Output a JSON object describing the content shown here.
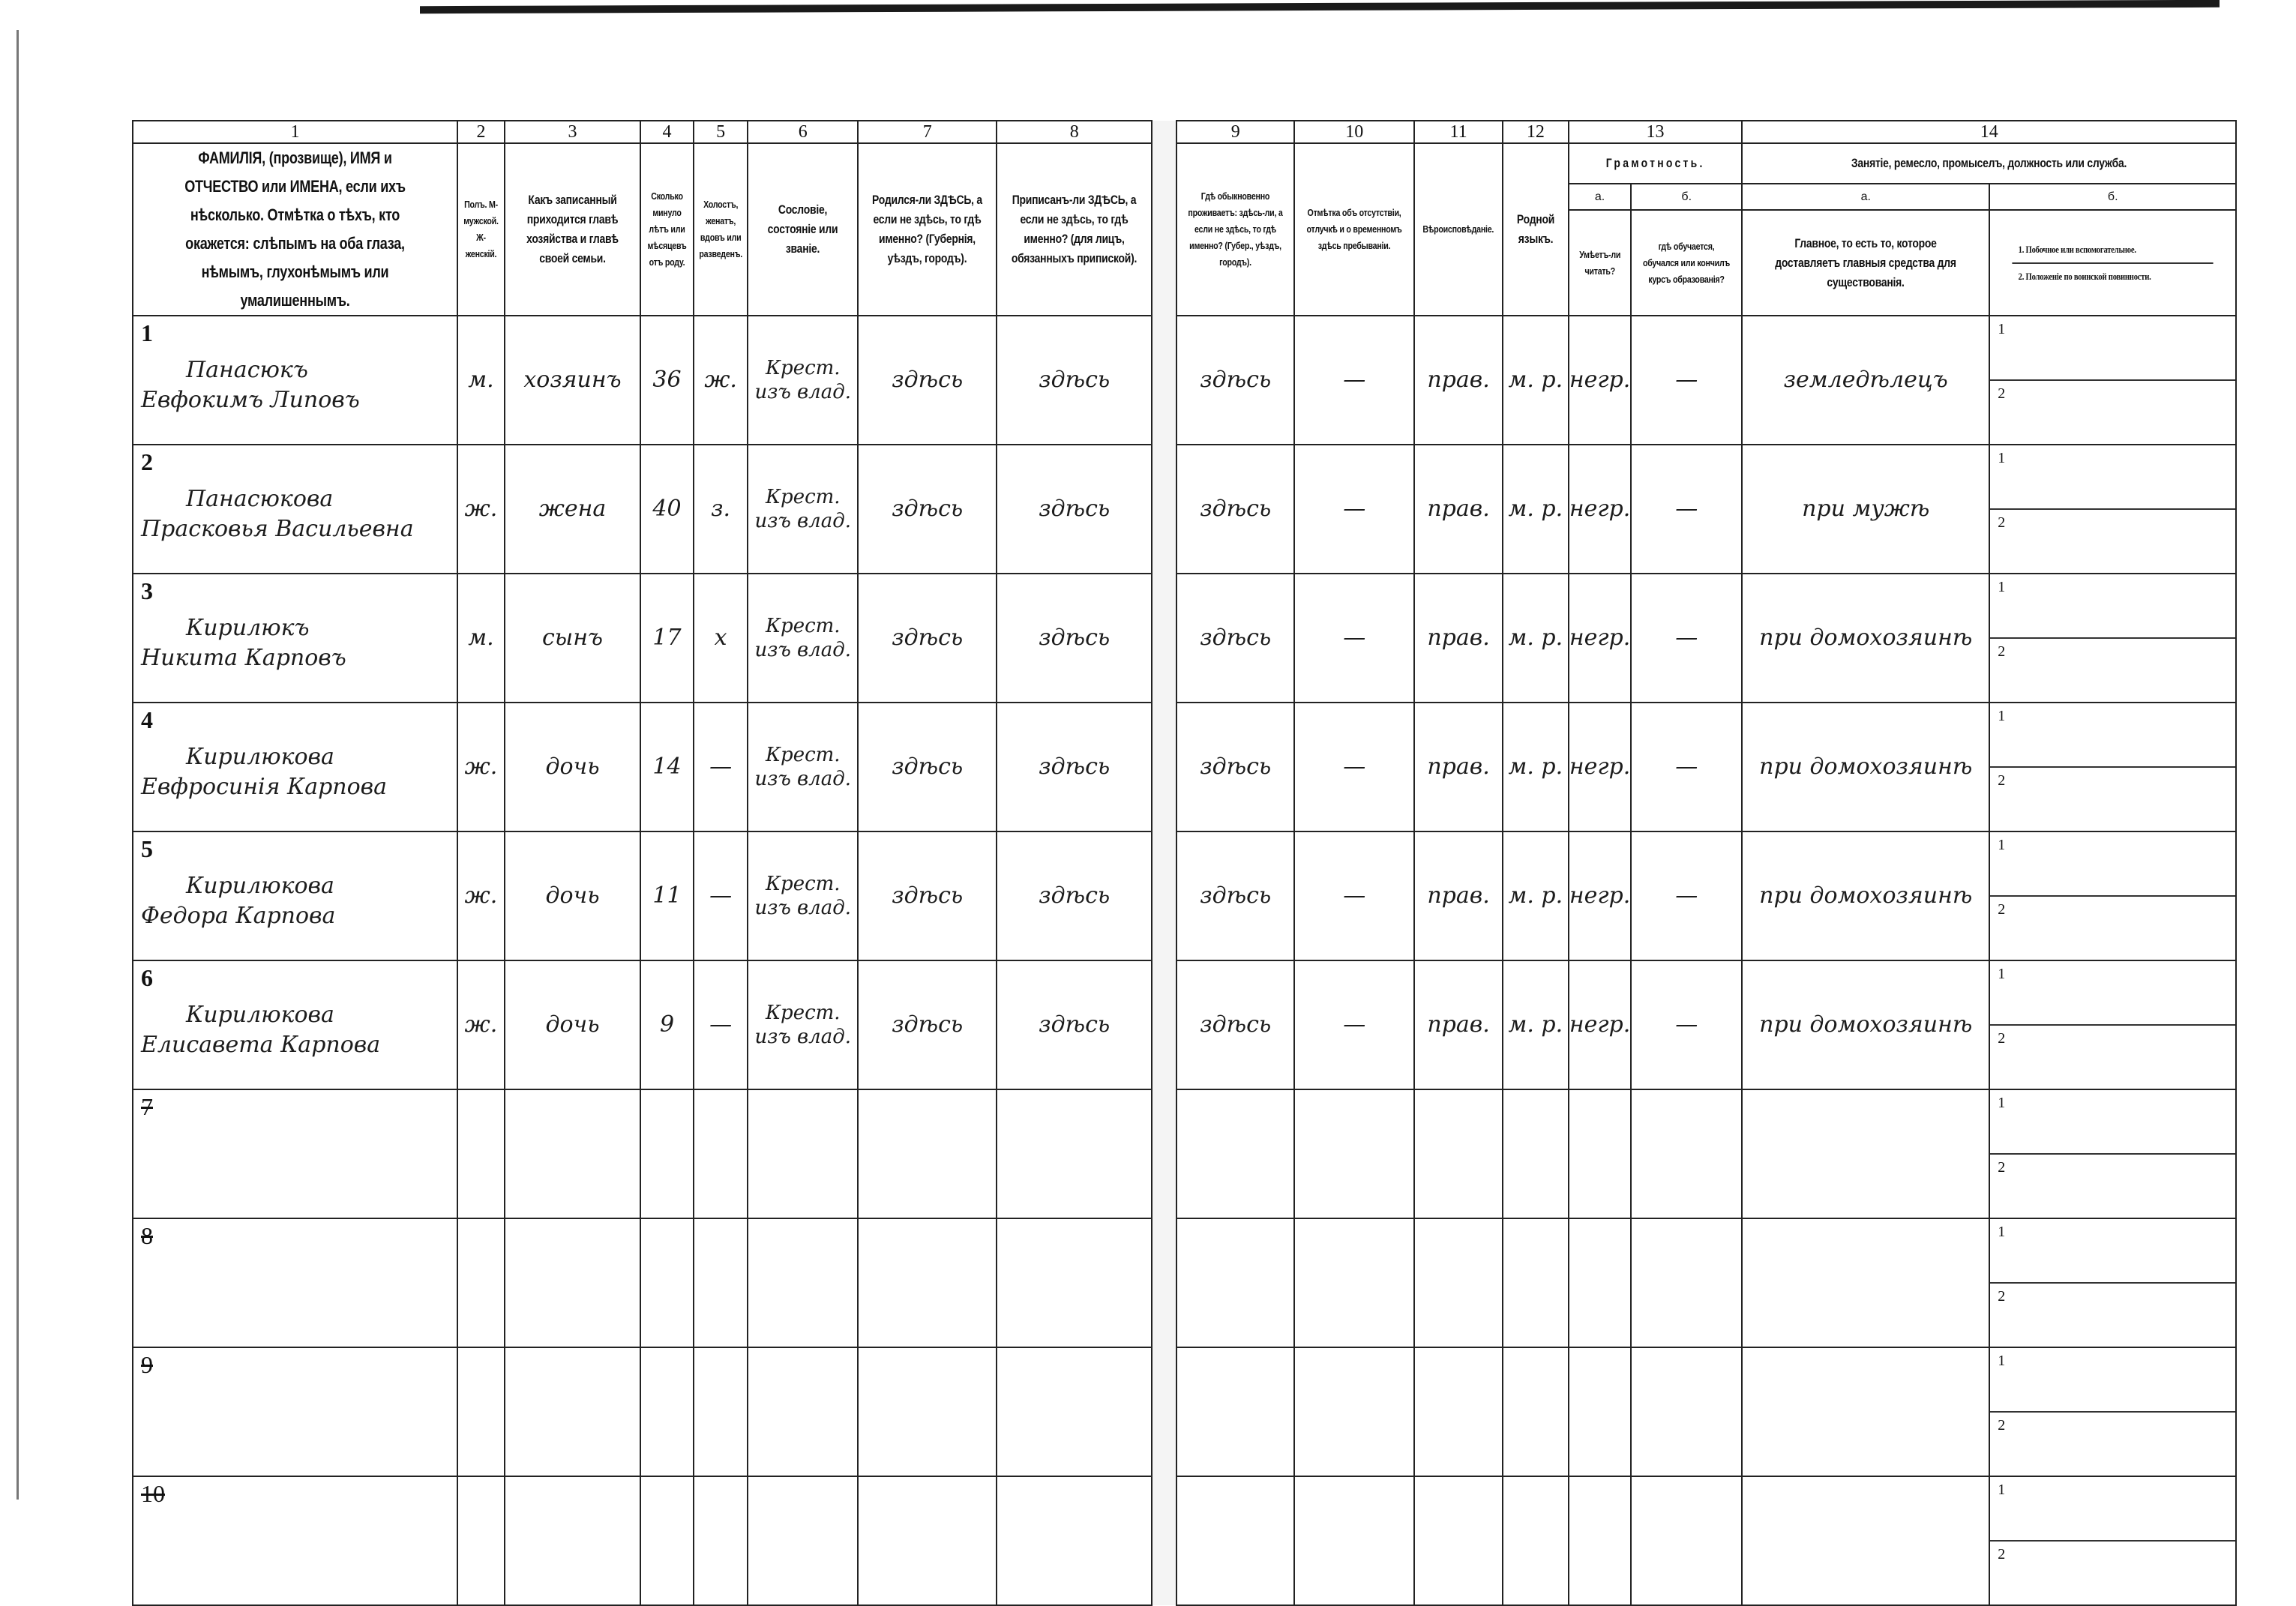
{
  "form": {
    "column_numbers": [
      "1",
      "2",
      "3",
      "4",
      "5",
      "6",
      "7",
      "8",
      "9",
      "10",
      "11",
      "12",
      "13",
      "14"
    ],
    "headers": {
      "c1": "ФАМИЛІЯ, (прозвище), ИМЯ и ОТЧЕСТВО или ИМЕНА, если ихъ нѣсколько. Отмѣтка о тѣхъ, кто окажется: слѣпымъ на оба глаза, нѣмымъ, глухонѣмымъ или умалишеннымъ.",
      "c2": "Полъ. М-мужской. Ж-женскій.",
      "c3": "Какъ записанный приходится главѣ хозяйства и главѣ своей семьи.",
      "c4": "Сколько минуло лѣтъ или мѣсяцевъ отъ роду.",
      "c5": "Холостъ, женатъ, вдовъ или разведенъ.",
      "c6": "Сословіе, состояніе или званіе.",
      "c7": "Родился-ли ЗДѢСЬ, а если не здѣсь, то гдѣ именно? (Губернія, уѣздъ, городъ).",
      "c8": "Приписанъ-ли ЗДѢСЬ, а если не здѣсь, то гдѣ именно? (для лицъ, обязанныхъ припиской).",
      "c9": "Гдѣ обыкновенно проживаетъ: здѣсь-ли, а если не здѣсь, то гдѣ именно? (Губер., уѣздъ, городъ).",
      "c10": "Отмѣтка объ отсутствіи, отлучкѣ и о временномъ здѣсь пребываніи.",
      "c11": "Вѣроисповѣданіе.",
      "c12": "Родной языкъ.",
      "c13": "Грамотность.",
      "c13a_label": "а.",
      "c13b_label": "б.",
      "c13a": "Умѣетъ-ли читать?",
      "c13b": "гдѣ обучается, обучался или кончилъ курсъ образованія?",
      "c14": "Занятіе, ремесло, промыселъ, должность или служба.",
      "c14a_label": "а.",
      "c14b_label": "б.",
      "c14a": "Главное, то есть то, которое доставляетъ главныя средства для существованія.",
      "c14b_1": "1. Побочное или вспомогательное.",
      "c14b_2": "2. Положеніе по воинской повинности."
    },
    "sub_labels": [
      "1",
      "2"
    ],
    "rows": [
      {
        "n": "1",
        "surname": "Панасюкъ",
        "given": "Евфокимъ Липовъ",
        "sex": "м.",
        "relation": "хозяинъ",
        "age": "36",
        "marital": "ж.",
        "estate": "Крест. изъ влад.",
        "born": "здѣсь",
        "registered": "здѣсь",
        "resides": "здѣсь",
        "absence": "—",
        "religion": "прав.",
        "language": "м. р.",
        "literate": "негр.",
        "school": "—",
        "occupation": "земледѣлецъ"
      },
      {
        "n": "2",
        "surname": "Панасюкова",
        "given": "Прасковья Васильевна",
        "sex": "ж.",
        "relation": "жена",
        "age": "40",
        "marital": "з.",
        "estate": "Крест. изъ влад.",
        "born": "здѣсь",
        "registered": "здѣсь",
        "resides": "здѣсь",
        "absence": "—",
        "religion": "прав.",
        "language": "м. р.",
        "literate": "негр.",
        "school": "—",
        "occupation": "при мужѣ"
      },
      {
        "n": "3",
        "surname": "Кирилюкъ",
        "given": "Никита Карповъ",
        "sex": "м.",
        "relation": "сынъ",
        "age": "17",
        "marital": "х",
        "estate": "Крест. изъ влад.",
        "born": "здѣсь",
        "registered": "здѣсь",
        "resides": "здѣсь",
        "absence": "—",
        "religion": "прав.",
        "language": "м. р.",
        "literate": "негр.",
        "school": "—",
        "occupation": "при домохозяинѣ"
      },
      {
        "n": "4",
        "surname": "Кирилюкова",
        "given": "Евфросинія Карпова",
        "sex": "ж.",
        "relation": "дочь",
        "age": "14",
        "marital": "—",
        "estate": "Крест. изъ влад.",
        "born": "здѣсь",
        "registered": "здѣсь",
        "resides": "здѣсь",
        "absence": "—",
        "religion": "прав.",
        "language": "м. р.",
        "literate": "негр.",
        "school": "—",
        "occupation": "при домохозяинѣ"
      },
      {
        "n": "5",
        "surname": "Кирилюкова",
        "given": "Федора Карпова",
        "sex": "ж.",
        "relation": "дочь",
        "age": "11",
        "marital": "—",
        "estate": "Крест. изъ влад.",
        "born": "здѣсь",
        "registered": "здѣсь",
        "resides": "здѣсь",
        "absence": "—",
        "religion": "прав.",
        "language": "м. р.",
        "literate": "негр.",
        "school": "—",
        "occupation": "при домохозяинѣ"
      },
      {
        "n": "6",
        "surname": "Кирилюкова",
        "given": "Елисавета Карпова",
        "sex": "ж.",
        "relation": "дочь",
        "age": "9",
        "marital": "—",
        "estate": "Крест. изъ влад.",
        "born": "здѣсь",
        "registered": "здѣсь",
        "resides": "здѣсь",
        "absence": "—",
        "religion": "прав.",
        "language": "м. р.",
        "literate": "негр.",
        "school": "—",
        "occupation": "при домохозяинѣ"
      }
    ],
    "empty_rows": [
      "7",
      "8",
      "9",
      "10"
    ]
  }
}
